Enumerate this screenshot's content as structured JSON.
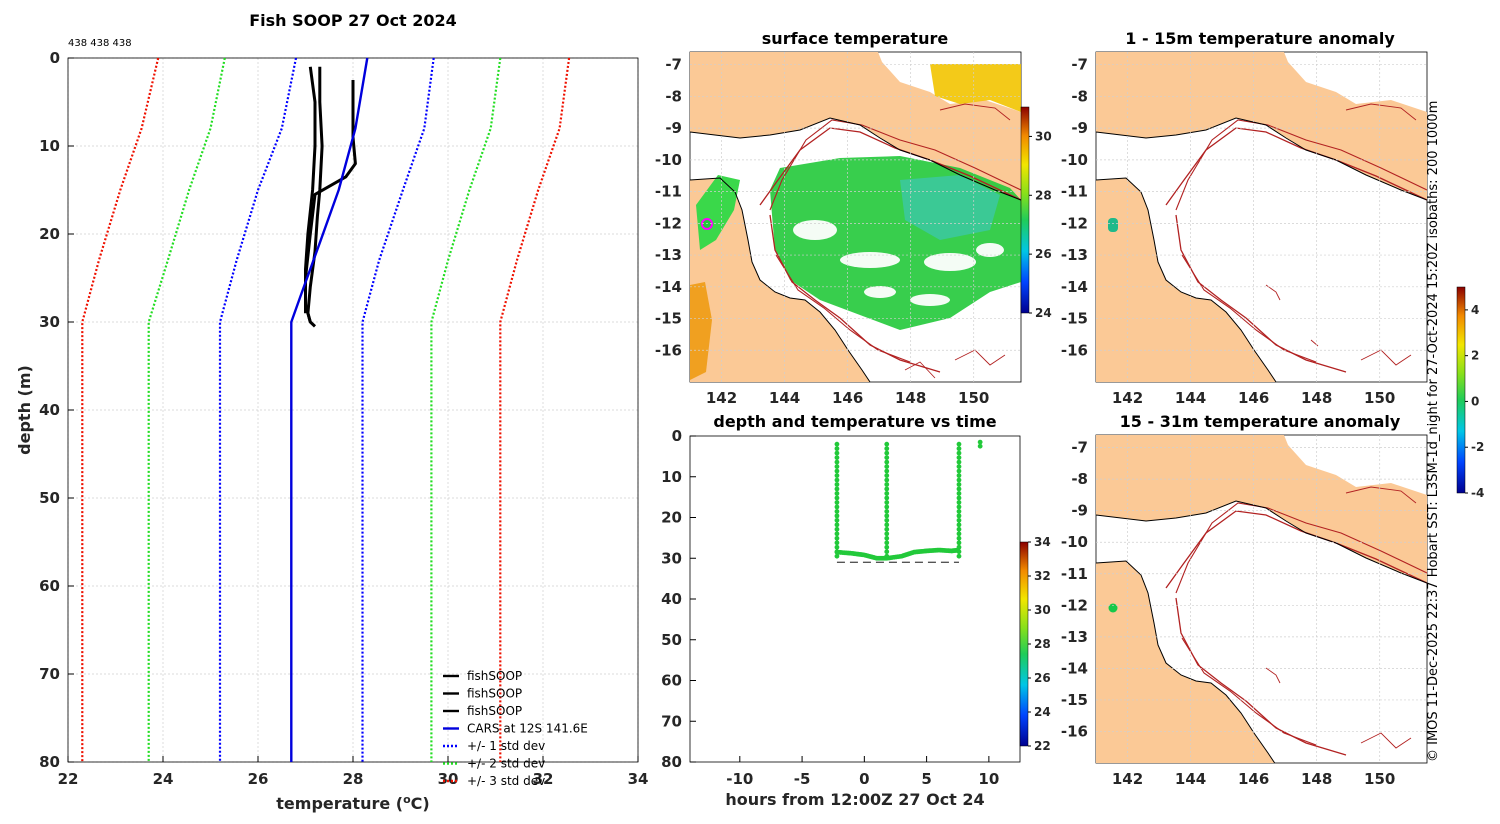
{
  "colors": {
    "land": "#fbc996",
    "contour": "#b22222",
    "fish": "#000000",
    "cars": "#0000dd",
    "sd1": "#0000ff",
    "sd2": "#22dd22",
    "sd3": "#ee1100",
    "sst": "#22c93a"
  },
  "credit": "© IMOS 11-Dec-2025 22:37 Hobart SST: L3SM-1d_night for 27-Oct-2024 15:20Z isobaths: 200  1000m",
  "chart_data": [
    {
      "type": "line",
      "title": "Fish SOOP 27 Oct 2024",
      "counts_label": "438 438 438",
      "xlabel": "temperature (°C)",
      "ylabel": "depth (m)",
      "xlim": [
        22,
        34
      ],
      "ylim": [
        0,
        80
      ],
      "y_reversed": true,
      "xticks": [
        22,
        24,
        26,
        28,
        30,
        32,
        34
      ],
      "yticks": [
        0,
        10,
        20,
        30,
        40,
        50,
        60,
        70,
        80
      ],
      "series": [
        {
          "name": "fishSOOP",
          "style": "solid",
          "x": [
            27.1,
            27.2,
            27.2,
            27.15,
            27.05,
            27.0,
            27.0,
            27.1,
            27.2,
            27.2
          ],
          "y": [
            1,
            5,
            10,
            15,
            20,
            24,
            28,
            30,
            30.5,
            30.5
          ]
        },
        {
          "name": "fishSOOP",
          "style": "solid",
          "x": [
            27.3,
            27.3,
            27.35,
            27.3,
            27.25,
            27.2,
            27.1,
            27.05,
            27.1
          ],
          "y": [
            1,
            5,
            10,
            15,
            18,
            22,
            26,
            29,
            30
          ]
        },
        {
          "name": "fishSOOP",
          "style": "solid",
          "x": [
            28.0,
            28.0,
            28.05,
            27.85,
            27.2,
            27.1,
            27.0,
            27.0
          ],
          "y": [
            2.5,
            9,
            12,
            13.5,
            15.5,
            20,
            25,
            29
          ]
        },
        {
          "name": "CARS at 12S 141.6E",
          "style": "solid",
          "x": [
            28.3,
            28.05,
            27.7,
            27.3,
            26.9,
            26.7,
            26.7,
            26.7
          ],
          "y": [
            0,
            8,
            15,
            21,
            27,
            30,
            55,
            80
          ]
        },
        {
          "name": "+/- 1 std dev",
          "style": "dotted",
          "x": [
            26.8,
            26.5,
            26.0,
            25.55,
            25.2,
            25.2,
            25.2
          ],
          "y": [
            0,
            8,
            15,
            23,
            30,
            55,
            80
          ]
        },
        {
          "name": "+/- 1 std dev",
          "style": "dotted",
          "legend": false,
          "x": [
            29.7,
            29.5,
            29.05,
            28.55,
            28.2,
            28.2,
            28.2
          ],
          "y": [
            0,
            8,
            15,
            23,
            30,
            55,
            80
          ]
        },
        {
          "name": "+/- 2 std dev",
          "style": "dotted",
          "x": [
            25.3,
            25.0,
            24.55,
            24.1,
            23.7,
            23.7,
            23.7
          ],
          "y": [
            0,
            8,
            15,
            23,
            30,
            55,
            80
          ]
        },
        {
          "name": "+/- 2 std dev",
          "style": "dotted",
          "legend": false,
          "x": [
            31.1,
            30.9,
            30.45,
            30.0,
            29.65,
            29.65,
            29.65
          ],
          "y": [
            0,
            8,
            15,
            23,
            30,
            55,
            80
          ]
        },
        {
          "name": "+/- 3 std dev",
          "style": "dotted",
          "x": [
            23.9,
            23.55,
            23.1,
            22.65,
            22.3,
            22.3,
            22.3
          ],
          "y": [
            0,
            8,
            15,
            23,
            30,
            55,
            80
          ]
        },
        {
          "name": "+/- 3 std dev",
          "style": "dotted",
          "legend": false,
          "x": [
            32.55,
            32.35,
            31.9,
            31.45,
            31.1,
            31.1,
            31.1
          ],
          "y": [
            0,
            8,
            15,
            23,
            30,
            55,
            80
          ]
        }
      ],
      "legend_position": "bottom-right"
    },
    {
      "type": "heatmap",
      "title": "surface temperature",
      "xlim": [
        141,
        151.5
      ],
      "ylim": [
        -17,
        -6.6
      ],
      "xticks": [
        142,
        144,
        146,
        148,
        150
      ],
      "yticks": [
        -7,
        -8,
        -9,
        -10,
        -11,
        -12,
        -13,
        -14,
        -15,
        -16
      ],
      "colorbar": {
        "range": [
          24,
          31
        ],
        "ticks": [
          24,
          26,
          28,
          30
        ]
      }
    },
    {
      "type": "heatmap",
      "title": "1 - 15m temperature anomaly",
      "xlim": [
        141,
        151.5
      ],
      "ylim": [
        -17,
        -6.6
      ],
      "xticks": [
        142,
        144,
        146,
        148,
        150
      ],
      "yticks": [
        -7,
        -8,
        -9,
        -10,
        -11,
        -12,
        -13,
        -14,
        -15,
        -16
      ],
      "colorbar": {
        "range": [
          -4,
          5
        ],
        "ticks": [
          -4,
          -2,
          0,
          2,
          4
        ]
      }
    },
    {
      "type": "scatter",
      "title": "depth and temperature vs time",
      "xlabel": "hours from 12:00Z 27 Oct 24",
      "xlim": [
        -14,
        12.5
      ],
      "ylim": [
        0,
        80
      ],
      "y_reversed": true,
      "xticks": [
        -10,
        -5,
        0,
        5,
        10
      ],
      "yticks": [
        0,
        10,
        20,
        30,
        40,
        50,
        60,
        70,
        80
      ],
      "dashed_line_depth": 31,
      "dashed_line_x": [
        -2.2,
        7.6
      ],
      "vertical_profiles_hours": [
        -2.2,
        1.8,
        7.6
      ],
      "bottom_track": {
        "x": [
          -2.2,
          -1,
          0,
          1,
          1.8,
          3,
          4,
          5,
          6,
          7,
          7.6
        ],
        "y": [
          28.5,
          28.8,
          29.2,
          30,
          30,
          29.5,
          28.5,
          28.2,
          28.0,
          28.2,
          28.0
        ]
      },
      "surface_points": {
        "x": [
          9.3,
          9.3
        ],
        "y": [
          1.5,
          2.5
        ]
      },
      "colorbar": {
        "range": [
          22,
          34
        ],
        "ticks": [
          22,
          24,
          26,
          28,
          30,
          32,
          34
        ]
      }
    },
    {
      "type": "heatmap",
      "title": "15 - 31m temperature anomaly",
      "xlim": [
        141,
        151.5
      ],
      "ylim": [
        -17,
        -6.6
      ],
      "xticks": [
        142,
        144,
        146,
        148,
        150
      ],
      "yticks": [
        -7,
        -8,
        -9,
        -10,
        -11,
        -12,
        -13,
        -14,
        -15,
        -16
      ]
    }
  ]
}
